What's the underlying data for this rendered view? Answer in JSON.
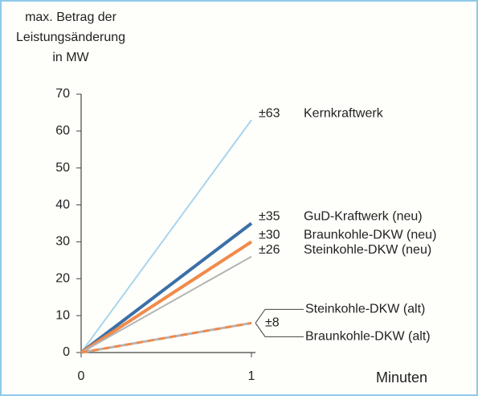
{
  "chart_data": {
    "type": "line",
    "y_label": [
      "max. Betrag der",
      "Leistungsänderung",
      "in MW"
    ],
    "x_label": "Minuten",
    "x": [
      0,
      1
    ],
    "xlim": [
      0,
      1
    ],
    "xticks": [
      0,
      1
    ],
    "ylim": [
      0,
      70
    ],
    "yticks": [
      0,
      10,
      20,
      30,
      40,
      50,
      60,
      70
    ],
    "grid": false,
    "series": [
      {
        "name": "Kernkraftwerk",
        "color": "#a9d5ec",
        "width": 2,
        "values": [
          0,
          63
        ],
        "value_labels": [
          null,
          "±63"
        ]
      },
      {
        "name": "GuD-Kraftwerk (neu)",
        "color": "#3b6fa6",
        "width": 4,
        "values": [
          0,
          35
        ],
        "value_labels": [
          null,
          "±35"
        ]
      },
      {
        "name": "Braunkohle-DKW (neu)",
        "color": "#f08a4b",
        "width": 4,
        "values": [
          0,
          30
        ],
        "value_labels": [
          null,
          "±30"
        ]
      },
      {
        "name": "Steinkohle-DKW (neu)",
        "color": "#b4b4b4",
        "width": 2,
        "values": [
          0,
          26
        ],
        "value_labels": [
          null,
          "±26"
        ]
      },
      {
        "name": "Steinkohle-DKW (alt)",
        "color": "#b4b4b4",
        "width": 3,
        "values": [
          0,
          8
        ],
        "value_labels": [
          null,
          "±8"
        ]
      },
      {
        "name": "Braunkohle-DKW (alt)",
        "color": "#f08a4b",
        "width": 3,
        "dashed": true,
        "values": [
          0,
          8
        ]
      }
    ]
  }
}
